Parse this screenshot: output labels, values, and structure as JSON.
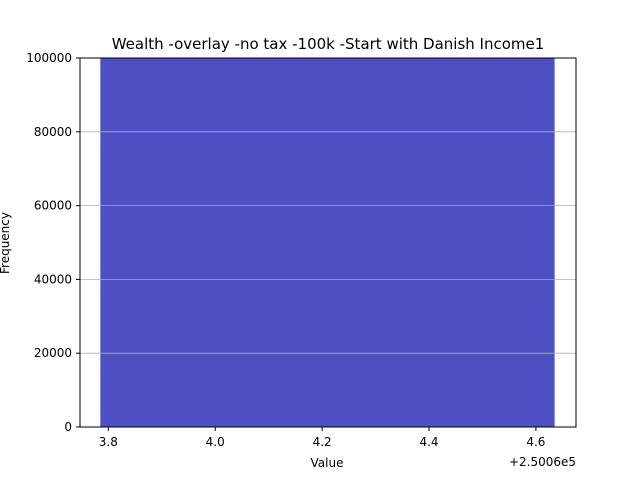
{
  "chart_data": {
    "type": "bar",
    "title": "Wealth -overlay -no tax -100k -Start with Danish Income1",
    "xlabel": "Value",
    "ylabel": "Frequency",
    "x_offset_label": "+2.5006e5",
    "xlim": [
      3.747,
      4.675
    ],
    "ylim": [
      0,
      100000
    ],
    "x_ticks": [
      3.8,
      4.0,
      4.2,
      4.4,
      4.6
    ],
    "x_tick_labels": [
      "3.8",
      "4.0",
      "4.2",
      "4.4",
      "4.6"
    ],
    "y_ticks": [
      0,
      20000,
      40000,
      60000,
      80000,
      100000
    ],
    "y_tick_labels": [
      "0",
      "20000",
      "40000",
      "60000",
      "80000",
      "100000"
    ],
    "grid": "y",
    "bars": [
      {
        "x_start": 3.785,
        "x_end": 4.635,
        "value": 100000
      }
    ],
    "bar_color": "#4f4fc4"
  }
}
